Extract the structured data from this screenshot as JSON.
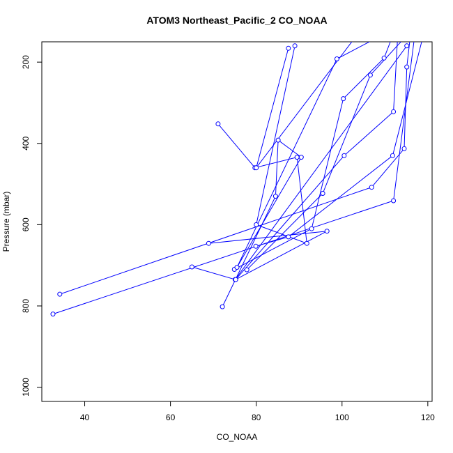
{
  "chart_data": {
    "type": "line",
    "title": "ATOM3 Northeast_Pacific_2 CO_NOAA",
    "xlabel": "CO_NOAA",
    "ylabel": "Pressure (mbar)",
    "xlim": [
      30,
      121
    ],
    "ylim": [
      1035,
      150
    ],
    "y_reversed": true,
    "x_ticks": [
      40,
      60,
      80,
      100,
      120
    ],
    "y_ticks": [
      200,
      400,
      600,
      800,
      1000
    ],
    "grid": false,
    "legend": "none",
    "line_color": "#0000ff",
    "series": [
      {
        "points": [
          [
            32.6,
            820
          ],
          [
            112,
            541
          ],
          [
            117,
            130
          ]
        ]
      },
      {
        "points": [
          [
            34.2,
            771
          ],
          [
            106.9,
            508
          ],
          [
            114.5,
            413
          ],
          [
            115.1,
            212
          ],
          [
            116,
            130
          ]
        ]
      },
      {
        "points": [
          [
            65,
            704
          ],
          [
            75.1,
            735
          ],
          [
            115.1,
            160
          ]
        ]
      },
      {
        "points": [
          [
            68.9,
            646
          ],
          [
            96.5,
            616
          ],
          [
            75.2,
            735
          ],
          [
            100.5,
            430
          ],
          [
            112,
            322
          ],
          [
            113,
            130
          ]
        ]
      },
      {
        "points": [
          [
            79.9,
            653
          ],
          [
            87.5,
            630
          ],
          [
            111.8,
            430
          ],
          [
            118.8,
            140
          ]
        ]
      },
      {
        "points": [
          [
            74.9,
            710
          ],
          [
            92.9,
            610
          ],
          [
            100.3,
            290
          ],
          [
            109.8,
            190
          ],
          [
            112,
            130
          ]
        ]
      },
      {
        "points": [
          [
            77.8,
            711
          ],
          [
            95.5,
            523
          ],
          [
            106.6,
            232
          ],
          [
            114.6,
            140
          ]
        ]
      },
      {
        "points": [
          [
            71.1,
            352
          ],
          [
            79.7,
            460
          ],
          [
            89.5,
            434
          ],
          [
            91.8,
            646
          ],
          [
            80,
            600
          ],
          [
            89,
            160
          ]
        ]
      },
      {
        "points": [
          [
            72.1,
            802
          ],
          [
            84.5,
            530
          ],
          [
            85.1,
            392
          ],
          [
            90.5,
            434
          ],
          [
            75.5,
            705
          ],
          [
            98.8,
            192
          ],
          [
            110,
            130
          ]
        ]
      },
      {
        "points": [
          [
            87.5,
            166
          ],
          [
            80,
            460
          ],
          [
            103,
            140
          ]
        ]
      }
    ]
  }
}
